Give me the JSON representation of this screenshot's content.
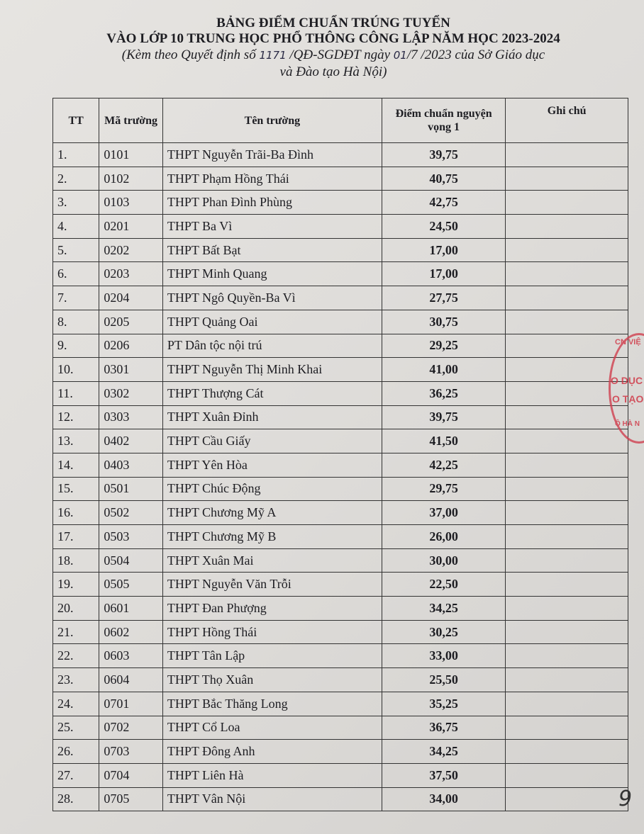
{
  "header": {
    "title": "BẢNG ĐIỂM CHUẨN TRÚNG TUYỂN",
    "subtitle": "VÀO LỚP 10 TRUNG HỌC PHỔ THÔNG CÔNG LẬP NĂM HỌC 2023-2024",
    "note_prefix": "(Kèm theo Quyết định số",
    "decision_number": "1171",
    "note_middle": "/QĐ-SGDĐT ngày",
    "day": "01",
    "note_suffix": "/7 /2023 của Sở Giáo dục",
    "note_line2": "và Đào tạo Hà Nội)"
  },
  "table": {
    "columns": [
      "TT",
      "Mã trường",
      "Tên trường",
      "Điểm chuẩn nguyện vọng 1",
      "Ghi chú"
    ],
    "rows": [
      [
        "1.",
        "0101",
        "THPT Nguyễn Trãi-Ba Đình",
        "39,75",
        ""
      ],
      [
        "2.",
        "0102",
        "THPT Phạm Hồng Thái",
        "40,75",
        ""
      ],
      [
        "3.",
        "0103",
        "THPT Phan Đình Phùng",
        "42,75",
        ""
      ],
      [
        "4.",
        "0201",
        "THPT Ba Vì",
        "24,50",
        ""
      ],
      [
        "5.",
        "0202",
        "THPT Bất Bạt",
        "17,00",
        ""
      ],
      [
        "6.",
        "0203",
        "THPT Minh Quang",
        "17,00",
        ""
      ],
      [
        "7.",
        "0204",
        "THPT Ngô Quyền-Ba Vì",
        "27,75",
        ""
      ],
      [
        "8.",
        "0205",
        "THPT Quảng Oai",
        "30,75",
        ""
      ],
      [
        "9.",
        "0206",
        "PT Dân tộc nội trú",
        "29,25",
        ""
      ],
      [
        "10.",
        "0301",
        "THPT Nguyễn Thị Minh Khai",
        "41,00",
        ""
      ],
      [
        "11.",
        "0302",
        "THPT Thượng Cát",
        "36,25",
        ""
      ],
      [
        "12.",
        "0303",
        "THPT Xuân Đỉnh",
        "39,75",
        ""
      ],
      [
        "13.",
        "0402",
        "THPT Cầu Giấy",
        "41,50",
        ""
      ],
      [
        "14.",
        "0403",
        "THPT Yên Hòa",
        "42,25",
        ""
      ],
      [
        "15.",
        "0501",
        "THPT Chúc Động",
        "29,75",
        ""
      ],
      [
        "16.",
        "0502",
        "THPT Chương Mỹ A",
        "37,00",
        ""
      ],
      [
        "17.",
        "0503",
        "THPT Chương Mỹ B",
        "26,00",
        ""
      ],
      [
        "18.",
        "0504",
        "THPT Xuân Mai",
        "30,00",
        ""
      ],
      [
        "19.",
        "0505",
        "THPT Nguyễn Văn Trỗi",
        "22,50",
        ""
      ],
      [
        "20.",
        "0601",
        "THPT Đan Phượng",
        "34,25",
        ""
      ],
      [
        "21.",
        "0602",
        "THPT Hồng Thái",
        "30,25",
        ""
      ],
      [
        "22.",
        "0603",
        "THPT Tân Lập",
        "33,00",
        ""
      ],
      [
        "23.",
        "0604",
        "THPT Thọ Xuân",
        "25,50",
        ""
      ],
      [
        "24.",
        "0701",
        "THPT Bắc Thăng Long",
        "35,25",
        ""
      ],
      [
        "25.",
        "0702",
        "THPT Cổ Loa",
        "36,75",
        ""
      ],
      [
        "26.",
        "0703",
        "THPT Đông Anh",
        "34,25",
        ""
      ],
      [
        "27.",
        "0704",
        "THPT Liên Hà",
        "37,50",
        ""
      ],
      [
        "28.",
        "0705",
        "THPT Vân Nội",
        "34,00",
        ""
      ]
    ]
  },
  "stamp": {
    "lines": [
      "CN VIỆ",
      "O DỤC",
      "O TẠO",
      "Ô HÀ N"
    ],
    "color": "#d03040"
  },
  "page_mark": "9"
}
